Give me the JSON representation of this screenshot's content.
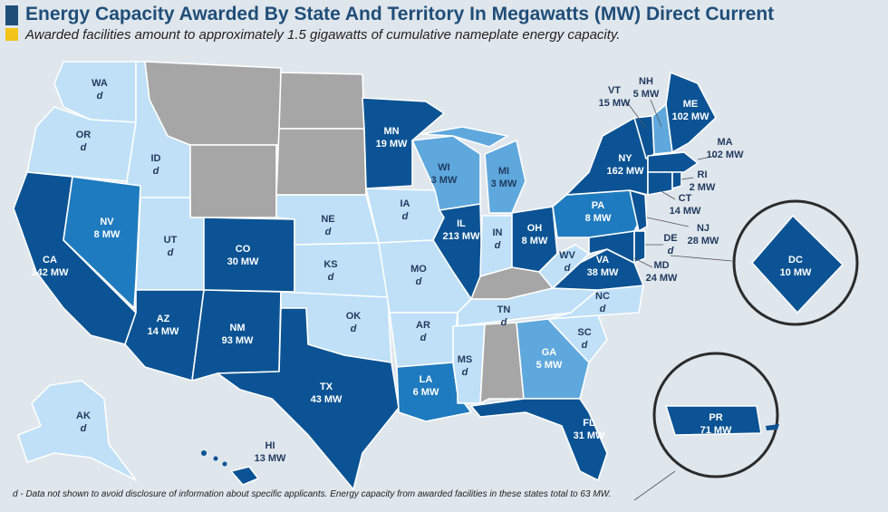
{
  "title": "Energy Capacity Awarded By State And Territory In Megawatts (MW) Direct Current",
  "subtitle": "Awarded facilities amount to approximately 1.5 gigawatts of cumulative nameplate energy capacity.",
  "footnote": "d - Data not shown to avoid disclosure of information about specific applicants. Energy capacity from awarded facilities in these states total to 63 MW.",
  "colors": {
    "dark": "#0b5394",
    "medium": "#1f7bbf",
    "light_mid": "#5fa8dd",
    "light": "#bfe0f7",
    "gray": "#a6a6a6",
    "label_dark_text": "#ffffff",
    "label_light_text": "#1f3a5f"
  },
  "states": {
    "WA": {
      "abbr": "WA",
      "value": "d"
    },
    "OR": {
      "abbr": "OR",
      "value": "d"
    },
    "ID": {
      "abbr": "ID",
      "value": "d"
    },
    "CA": {
      "abbr": "CA",
      "value": "342 MW"
    },
    "NV": {
      "abbr": "NV",
      "value": "8 MW"
    },
    "UT": {
      "abbr": "UT",
      "value": "d"
    },
    "AZ": {
      "abbr": "AZ",
      "value": "14 MW"
    },
    "CO": {
      "abbr": "CO",
      "value": "30 MW"
    },
    "NM": {
      "abbr": "NM",
      "value": "93 MW"
    },
    "NE": {
      "abbr": "NE",
      "value": "d"
    },
    "KS": {
      "abbr": "KS",
      "value": "d"
    },
    "OK": {
      "abbr": "OK",
      "value": "d"
    },
    "TX": {
      "abbr": "TX",
      "value": "43 MW"
    },
    "MN": {
      "abbr": "MN",
      "value": "19 MW"
    },
    "IA": {
      "abbr": "IA",
      "value": "d"
    },
    "MO": {
      "abbr": "MO",
      "value": "d"
    },
    "AR": {
      "abbr": "AR",
      "value": "d"
    },
    "LA": {
      "abbr": "LA",
      "value": "6 MW"
    },
    "WI": {
      "abbr": "WI",
      "value": "3 MW"
    },
    "IL": {
      "abbr": "IL",
      "value": "213 MW"
    },
    "MI": {
      "abbr": "MI",
      "value": "3 MW"
    },
    "IN": {
      "abbr": "IN",
      "value": "d"
    },
    "OH": {
      "abbr": "OH",
      "value": "8 MW"
    },
    "TN": {
      "abbr": "TN",
      "value": "d"
    },
    "MS": {
      "abbr": "MS",
      "value": "d"
    },
    "GA": {
      "abbr": "GA",
      "value": "5 MW"
    },
    "FL": {
      "abbr": "FL",
      "value": "31 MW"
    },
    "SC": {
      "abbr": "SC",
      "value": "d"
    },
    "NC": {
      "abbr": "NC",
      "value": "d"
    },
    "VA": {
      "abbr": "VA",
      "value": "38 MW"
    },
    "WV": {
      "abbr": "WV",
      "value": "d"
    },
    "PA": {
      "abbr": "PA",
      "value": "8 MW"
    },
    "NY": {
      "abbr": "NY",
      "value": "162 MW"
    },
    "VT": {
      "abbr": "VT",
      "value": "15 MW"
    },
    "NH": {
      "abbr": "NH",
      "value": "5 MW"
    },
    "ME": {
      "abbr": "ME",
      "value": "102 MW"
    },
    "MA": {
      "abbr": "MA",
      "value": "102 MW"
    },
    "RI": {
      "abbr": "RI",
      "value": "2 MW"
    },
    "CT": {
      "abbr": "CT",
      "value": "14 MW"
    },
    "NJ": {
      "abbr": "NJ",
      "value": "28 MW"
    },
    "DE": {
      "abbr": "DE",
      "value": "d"
    },
    "MD": {
      "abbr": "MD",
      "value": "24 MW"
    },
    "AK": {
      "abbr": "AK",
      "value": "d"
    },
    "HI": {
      "abbr": "HI",
      "value": "13 MW"
    },
    "DC": {
      "abbr": "DC",
      "value": "10 MW"
    },
    "PR": {
      "abbr": "PR",
      "value": "71 MW"
    }
  }
}
